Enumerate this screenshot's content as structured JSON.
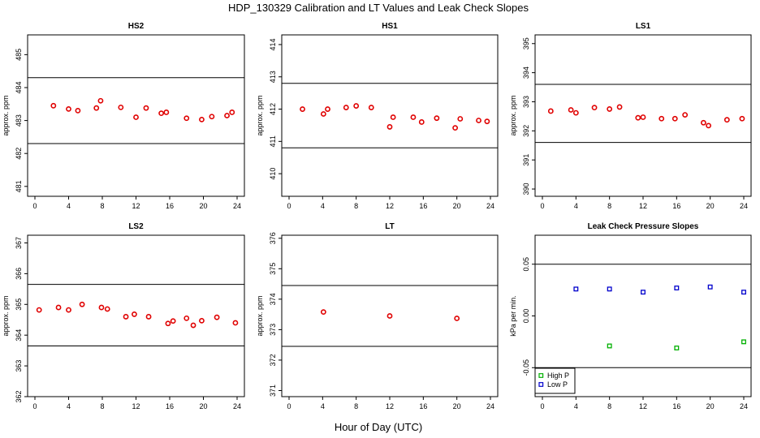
{
  "title": "HDP_130329  Calibration and LT Values and Leak Check Slopes",
  "xlabel": "Hour of Day (UTC)",
  "colors": {
    "sample": "#e00000",
    "high_p": "#00b000",
    "low_p": "#0000cc",
    "axis": "#000000"
  },
  "chart_data": [
    {
      "type": "scatter",
      "title": "HS2",
      "ylabel": "approx. ppm",
      "xlim": [
        0,
        24
      ],
      "ylim": [
        480.7,
        485.6
      ],
      "xticks": [
        "0",
        "4",
        "8",
        "12",
        "16",
        "20",
        "24"
      ],
      "yticks": [
        "481",
        "482",
        "483",
        "484",
        "485"
      ],
      "hlines": [
        484.3,
        482.3
      ],
      "series": [
        {
          "name": "samples",
          "color": "#e00000",
          "x": [
            2.2,
            4.0,
            5.1,
            7.3,
            7.8,
            10.2,
            12.0,
            13.2,
            15.0,
            15.6,
            18.0,
            19.8,
            21.0,
            22.8,
            23.4
          ],
          "y": [
            483.45,
            483.35,
            483.3,
            483.38,
            483.6,
            483.4,
            483.1,
            483.38,
            483.22,
            483.25,
            483.07,
            483.03,
            483.12,
            483.15,
            483.25
          ]
        }
      ]
    },
    {
      "type": "scatter",
      "title": "HS1",
      "ylabel": "approx. ppm",
      "xlim": [
        0,
        24
      ],
      "ylim": [
        409.3,
        414.3
      ],
      "xticks": [
        "0",
        "4",
        "8",
        "12",
        "16",
        "20",
        "24"
      ],
      "yticks": [
        "410",
        "411",
        "412",
        "413",
        "414"
      ],
      "hlines": [
        412.8,
        410.8
      ],
      "series": [
        {
          "name": "samples",
          "color": "#e00000",
          "x": [
            1.6,
            4.1,
            4.6,
            6.8,
            8.0,
            9.8,
            12.0,
            12.4,
            14.8,
            15.8,
            17.6,
            19.8,
            20.4,
            22.6,
            23.6
          ],
          "y": [
            412.0,
            411.85,
            412.0,
            412.05,
            412.1,
            412.05,
            411.45,
            411.75,
            411.75,
            411.6,
            411.72,
            411.42,
            411.7,
            411.65,
            411.62
          ]
        }
      ]
    },
    {
      "type": "scatter",
      "title": "LS1",
      "ylabel": "approx. ppm",
      "xlim": [
        0,
        24
      ],
      "ylim": [
        389.75,
        395.3
      ],
      "xticks": [
        "0",
        "4",
        "8",
        "12",
        "16",
        "20",
        "24"
      ],
      "yticks": [
        "390",
        "391",
        "392",
        "393",
        "394",
        "395"
      ],
      "hlines": [
        393.6,
        391.6
      ],
      "series": [
        {
          "name": "samples",
          "color": "#e00000",
          "x": [
            1.0,
            3.4,
            4.0,
            6.2,
            8.0,
            9.2,
            11.4,
            12.0,
            14.2,
            15.8,
            17.0,
            19.2,
            19.8,
            22.0,
            23.8
          ],
          "y": [
            392.68,
            392.72,
            392.62,
            392.8,
            392.75,
            392.82,
            392.45,
            392.47,
            392.42,
            392.42,
            392.55,
            392.28,
            392.18,
            392.38,
            392.42
          ]
        }
      ]
    },
    {
      "type": "scatter",
      "title": "LS2",
      "ylabel": "approx. ppm",
      "xlim": [
        0,
        24
      ],
      "ylim": [
        362.0,
        367.25
      ],
      "xticks": [
        "0",
        "4",
        "8",
        "12",
        "16",
        "20",
        "24"
      ],
      "yticks": [
        "362",
        "363",
        "364",
        "365",
        "366",
        "367"
      ],
      "hlines": [
        365.65,
        363.65
      ],
      "series": [
        {
          "name": "samples",
          "color": "#e00000",
          "x": [
            0.5,
            2.8,
            4.0,
            5.6,
            7.9,
            8.6,
            10.8,
            11.8,
            13.5,
            15.8,
            16.4,
            18.0,
            18.8,
            19.8,
            21.6,
            23.8
          ],
          "y": [
            364.82,
            364.9,
            364.82,
            365.0,
            364.9,
            364.85,
            364.6,
            364.68,
            364.6,
            364.38,
            364.46,
            364.55,
            364.32,
            364.47,
            364.58,
            364.4
          ]
        }
      ]
    },
    {
      "type": "scatter",
      "title": "LT",
      "ylabel": "approx. ppm",
      "xlim": [
        0,
        24
      ],
      "ylim": [
        370.8,
        376.1
      ],
      "xticks": [
        "0",
        "4",
        "8",
        "12",
        "16",
        "20",
        "24"
      ],
      "yticks": [
        "371",
        "372",
        "373",
        "374",
        "375",
        "376"
      ],
      "hlines": [
        374.45,
        372.45
      ],
      "series": [
        {
          "name": "samples",
          "color": "#e00000",
          "x": [
            4.1,
            12.0,
            20.0
          ],
          "y": [
            373.58,
            373.45,
            373.37
          ]
        }
      ]
    },
    {
      "type": "scatter",
      "title": "Leak Check Pressure Slopes",
      "ylabel": "kPa per min.",
      "xlim": [
        0,
        24
      ],
      "ylim": [
        -0.078,
        0.078
      ],
      "xticks": [
        "0",
        "4",
        "8",
        "12",
        "16",
        "20",
        "24"
      ],
      "yticks": [
        "-0.05",
        "0.00",
        "0.05"
      ],
      "hlines": [
        0.05,
        -0.05
      ],
      "legend": [
        "High P",
        "Low P"
      ],
      "series": [
        {
          "name": "High P",
          "color": "#00b000",
          "x": [
            8.0,
            16.0,
            24.0
          ],
          "y": [
            -0.029,
            -0.031,
            -0.025
          ]
        },
        {
          "name": "Low P",
          "color": "#0000cc",
          "x": [
            4.0,
            8.0,
            12.0,
            16.0,
            20.0,
            24.0
          ],
          "y": [
            0.026,
            0.026,
            0.023,
            0.027,
            0.028,
            0.023
          ]
        }
      ]
    }
  ]
}
